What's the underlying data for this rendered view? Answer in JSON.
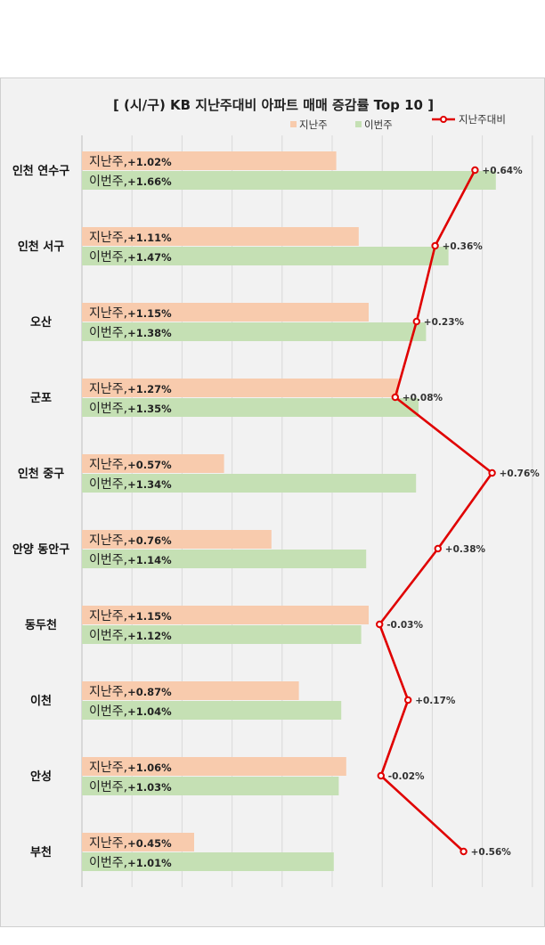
{
  "chart_data": {
    "type": "bar",
    "orientation": "horizontal",
    "title": "[ (시/구) KB 지난주대비 아파트 매매 증감률 Top 10 ]",
    "categories": [
      "인천 연수구",
      "인천 서구",
      "오산",
      "군포",
      "인천 중구",
      "안양 동안구",
      "동두천",
      "이천",
      "안성",
      "부천"
    ],
    "series": [
      {
        "name": "지난주",
        "type": "bar",
        "color": "#f8cbad",
        "values": [
          1.02,
          1.11,
          1.15,
          1.27,
          0.57,
          0.76,
          1.15,
          0.87,
          1.06,
          0.45
        ],
        "labels": [
          "+1.02%",
          "+1.11%",
          "+1.15%",
          "+1.27%",
          "+0.57%",
          "+0.76%",
          "+1.15%",
          "+0.87%",
          "+1.06%",
          "+0.45%"
        ]
      },
      {
        "name": "이번주",
        "type": "bar",
        "color": "#c5e0b4",
        "values": [
          1.66,
          1.47,
          1.38,
          1.35,
          1.34,
          1.14,
          1.12,
          1.04,
          1.03,
          1.01
        ],
        "labels": [
          "+1.66%",
          "+1.47%",
          "+1.38%",
          "+1.35%",
          "+1.34%",
          "+1.14%",
          "+1.12%",
          "+1.04%",
          "+1.03%",
          "+1.01%"
        ]
      },
      {
        "name": "지난주대비",
        "type": "line",
        "color": "#e00000",
        "values": [
          0.64,
          0.36,
          0.23,
          0.08,
          0.76,
          0.38,
          -0.03,
          0.17,
          -0.02,
          0.56
        ],
        "labels": [
          "+0.64%",
          "+0.36%",
          "+0.23%",
          "+0.08%",
          "+0.76%",
          "+0.38%",
          "-0.03%",
          "+0.17%",
          "-0.02%",
          "+0.56%"
        ]
      }
    ],
    "bar_label_prefix": {
      "지난주": "지난주,",
      "이번주": "이번주,"
    },
    "grid": true,
    "legend_position": "top-right"
  }
}
